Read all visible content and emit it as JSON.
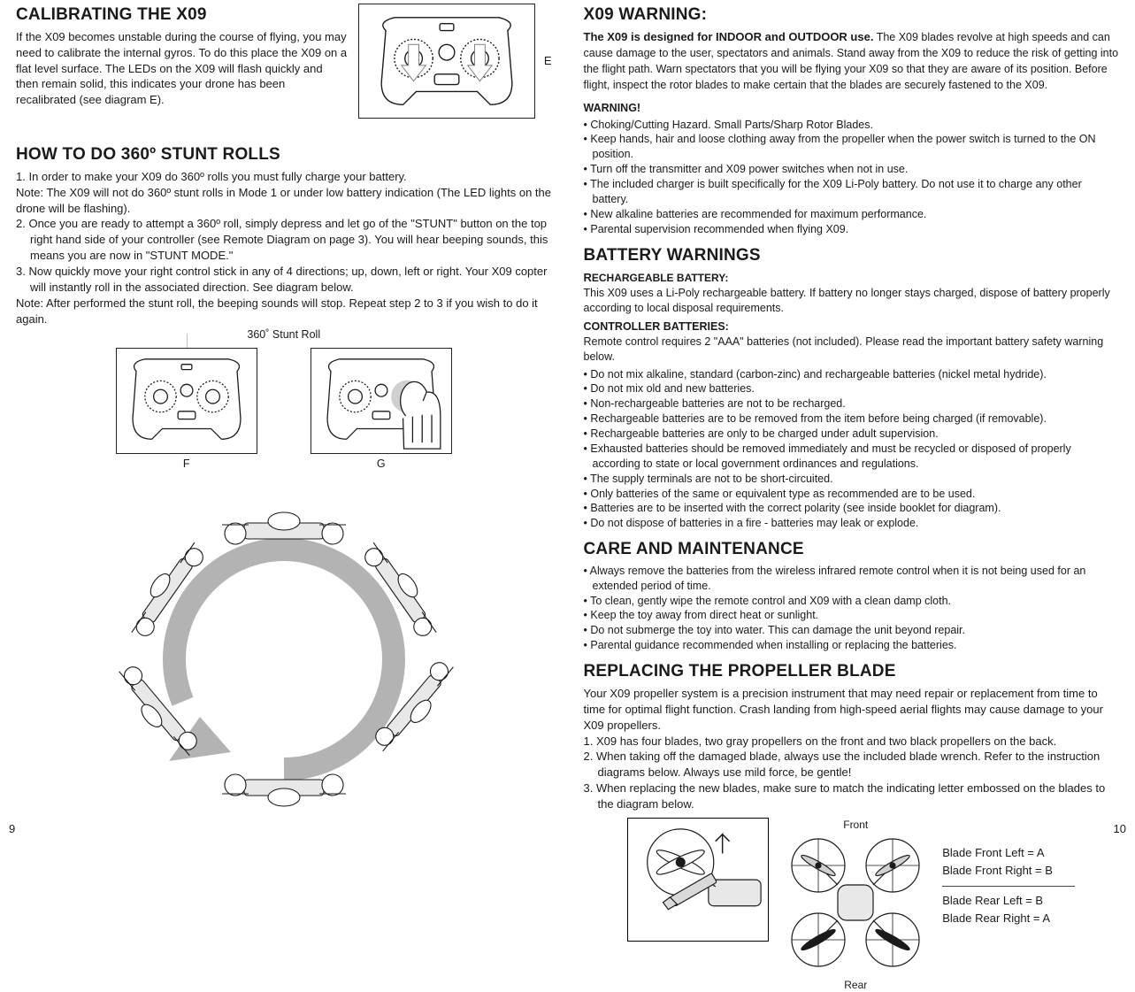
{
  "left": {
    "calib": {
      "title": "CALIBRATING THE X09",
      "body": "If the X09 becomes unstable during the course of flying, you may need to calibrate the internal gyros. To do this place the X09 on a flat level surface. The LEDs on the X09 will flash quickly and then remain solid, this indicates your drone has been recalibrated (see diagram E).",
      "diag_label": "E"
    },
    "stunt": {
      "title": "HOW TO DO 360º STUNT ROLLS",
      "step1": "1. In order to make your X09 do 360º rolls you must fully charge your battery.",
      "note1": "Note: The X09 will not do 360º stunt rolls in Mode 1 or under low  battery indication (The LED lights on the drone will be flashing).",
      "step2": "2. Once you are ready to attempt a 360º roll, simply depress and let go of the \"STUNT\" button on the top right hand side of your controller (see Remote Diagram on page 3). You will hear beeping sounds, this means you are now in \"STUNT MODE.\"",
      "step3": "3. Now quickly move your right control stick in any of 4 directions; up, down, left or right. Your X09 copter will instantly roll in the associated direction. See diagram below.",
      "note2": "Note:  After performed the stunt roll, the beeping sounds will stop. Repeat step 2 to 3 if you wish to do it again.",
      "stunt_caption": "360˚ Stunt Roll",
      "label_f": "F",
      "label_g": "G"
    },
    "pagenum": "9"
  },
  "right": {
    "x09warn": {
      "title": "X09 WARNING:",
      "lead": "The X09 is designed for INDOOR and OUTDOOR use.",
      "body": "  The X09 blades revolve at high speeds and can cause damage to the user, spectators and animals. Stand away from the X09 to reduce the risk of getting into the flight path. Warn spectators that you will be flying your X09 so that they are aware of its position. Before flight, inspect the rotor blades to make certain that the blades are securely fastened to the X09.",
      "warn_head": "WARNING!",
      "bullets": [
        "Choking/Cutting Hazard. Small Parts/Sharp Rotor Blades.",
        "Keep hands, hair and loose clothing away from the propeller when the power switch is turned to the ON position.",
        "Turn off the transmitter and X09 power switches when not in use.",
        "The included charger is built specifically for the X09 Li-Poly battery. Do not use it to charge any other battery.",
        "New alkaline batteries are recommended for maximum performance.",
        "Parental supervision recommended when flying X09."
      ]
    },
    "battery": {
      "title": "BATTERY WARNINGS",
      "rech_head": "RECHARGEABLE BATTERY:",
      "rech_body": "This X09 uses a Li-Poly rechargeable battery.  If battery no longer stays charged, dispose of battery properly according to local disposal requirements.",
      "ctrl_head": "CONTROLLER BATTERIES:",
      "ctrl_intro": "Remote control requires 2 \"AAA\" batteries (not included). Please read the important battery safety warning below.",
      "bullets": [
        "Do not mix alkaline, standard (carbon-zinc) and rechargeable batteries (nickel metal hydride).",
        "Do not mix old and new batteries.",
        "Non-rechargeable batteries are not to be recharged.",
        "Rechargeable batteries are to be removed from the item before being charged (if removable).",
        "Rechargeable batteries are only to be charged under adult supervision.",
        "Exhausted batteries should be removed immediately and must be recycled or disposed of properly according to state or local government ordinances and regulations.",
        "The supply terminals are not to be short-circuited.",
        "Only batteries of the same or equivalent type as recommended are to be used.",
        "Batteries are to be inserted with the correct polarity (see inside booklet for diagram).",
        "Do not dispose of batteries in a fire - batteries may leak or explode."
      ]
    },
    "care": {
      "title": "CARE AND MAINTENANCE",
      "bullets": [
        "Always remove the batteries from the wireless infrared remote control when it is not being used for an extended period of time.",
        "To clean, gently wipe the remote control and X09 with a clean damp cloth.",
        "Keep the toy away from direct heat or sunlight.",
        "Do not submerge the toy into water. This can damage the unit beyond repair.",
        "Parental guidance recommended when installing or replacing the batteries."
      ]
    },
    "propeller": {
      "title": "REPLACING THE PROPELLER BLADE",
      "body": "Your X09 propeller system is a precision instrument that may need repair or replacement from time to time for optimal flight function. Crash landing from high-speed aerial flights may cause damage to your X09 propellers.",
      "step1": "1. X09 has four blades, two gray propellers on the front and two black propellers on the back.",
      "step2": "2. When taking off the damaged blade,  always use the included blade wrench.  Refer to the instruction diagrams below.  Always use mild force, be gentle!",
      "step3": "3. When replacing the new blades, make sure to match the indicating letter embossed on the blades to the diagram below.",
      "front": "Front",
      "rear": "Rear",
      "legend_fl": "Blade Front Left  =  A",
      "legend_fr": "Blade Front Right  =  B",
      "legend_rl": "Blade Rear Left  =  B",
      "legend_rr": "Blade Rear Right  =  A"
    },
    "pagenum": "10"
  },
  "style": {
    "stroke": "#1a1a1a",
    "grey": "#b3b3b3",
    "light": "#d9d9d9"
  }
}
